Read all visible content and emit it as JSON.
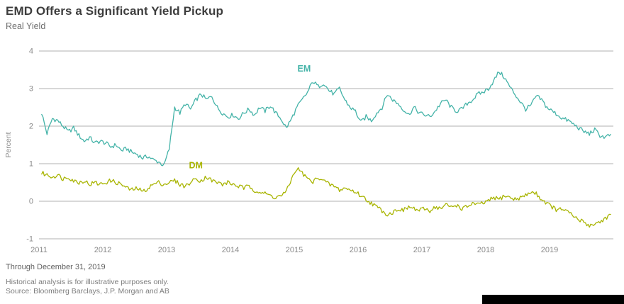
{
  "header": {
    "title": "EMD Offers a Significant Yield Pickup",
    "subtitle": "Real Yield"
  },
  "footer": {
    "line1": "Through December 31, 2019",
    "line2": "Historical analysis is for illustrative purposes only.",
    "line3": "Source: Bloomberg Barclays, J.P. Morgan and AB"
  },
  "chart_data": {
    "type": "line",
    "title": "EMD Offers a Significant Yield Pickup",
    "subtitle": "Real Yield",
    "ylabel": "Percent",
    "xlabel": "",
    "ylim": [
      -1,
      4
    ],
    "yticks": [
      4,
      3,
      2,
      1,
      0,
      -1
    ],
    "xticks": [
      2011,
      2012,
      2013,
      2014,
      2015,
      2016,
      2017,
      2018,
      2019
    ],
    "x_range": [
      2011,
      2020
    ],
    "x_start": 2011.042,
    "x_step_years": 0.08333,
    "grid": "horizontal",
    "grid_color": "#b0b0b0",
    "axis_text_color": "#8a8a8a",
    "noise_amplitude": 0.06,
    "legend_position": "inline-labels",
    "series": [
      {
        "name": "EM",
        "color": "#44b3a8",
        "label_pos": {
          "x": 2015.05,
          "y": 3.45
        },
        "values": [
          2.35,
          1.8,
          2.2,
          2.15,
          2.0,
          1.85,
          1.95,
          1.75,
          1.6,
          1.7,
          1.55,
          1.6,
          1.55,
          1.45,
          1.5,
          1.35,
          1.4,
          1.3,
          1.25,
          1.15,
          1.2,
          1.1,
          1.05,
          0.95,
          1.4,
          2.5,
          2.35,
          2.6,
          2.45,
          2.7,
          2.85,
          2.7,
          2.8,
          2.5,
          2.35,
          2.25,
          2.3,
          2.2,
          2.35,
          2.45,
          2.3,
          2.5,
          2.4,
          2.55,
          2.35,
          2.2,
          1.95,
          2.2,
          2.5,
          2.7,
          2.9,
          3.2,
          3.05,
          3.15,
          2.95,
          2.85,
          3.0,
          2.7,
          2.5,
          2.4,
          2.1,
          2.25,
          2.15,
          2.35,
          2.5,
          2.85,
          2.7,
          2.6,
          2.45,
          2.3,
          2.5,
          2.35,
          2.3,
          2.25,
          2.4,
          2.6,
          2.7,
          2.5,
          2.4,
          2.45,
          2.6,
          2.7,
          2.85,
          2.9,
          3.0,
          3.2,
          3.45,
          3.3,
          3.05,
          2.85,
          2.65,
          2.45,
          2.55,
          2.8,
          2.7,
          2.5,
          2.4,
          2.3,
          2.2,
          2.15,
          2.05,
          1.95,
          1.85,
          1.8,
          1.9,
          1.75,
          1.7,
          1.78
        ]
      },
      {
        "name": "DM",
        "color": "#a8b400",
        "label_pos": {
          "x": 2013.35,
          "y": 0.88
        },
        "values": [
          0.75,
          0.7,
          0.65,
          0.7,
          0.6,
          0.65,
          0.55,
          0.5,
          0.55,
          0.45,
          0.5,
          0.45,
          0.5,
          0.55,
          0.5,
          0.45,
          0.35,
          0.3,
          0.35,
          0.25,
          0.35,
          0.45,
          0.5,
          0.45,
          0.5,
          0.55,
          0.45,
          0.4,
          0.5,
          0.6,
          0.55,
          0.65,
          0.55,
          0.5,
          0.45,
          0.5,
          0.45,
          0.4,
          0.35,
          0.4,
          0.3,
          0.25,
          0.2,
          0.15,
          0.1,
          0.15,
          0.25,
          0.6,
          0.88,
          0.75,
          0.6,
          0.5,
          0.65,
          0.55,
          0.45,
          0.4,
          0.3,
          0.35,
          0.3,
          0.25,
          0.15,
          0.05,
          -0.05,
          -0.15,
          -0.25,
          -0.35,
          -0.3,
          -0.2,
          -0.25,
          -0.15,
          -0.2,
          -0.25,
          -0.2,
          -0.25,
          -0.15,
          -0.2,
          -0.1,
          -0.15,
          -0.1,
          -0.2,
          -0.15,
          -0.05,
          -0.1,
          -0.05,
          0.0,
          0.1,
          0.05,
          0.15,
          0.1,
          0.05,
          0.1,
          0.15,
          0.25,
          0.2,
          0.05,
          -0.05,
          -0.15,
          -0.25,
          -0.2,
          -0.3,
          -0.4,
          -0.5,
          -0.55,
          -0.65,
          -0.6,
          -0.55,
          -0.45,
          -0.35
        ]
      }
    ]
  }
}
